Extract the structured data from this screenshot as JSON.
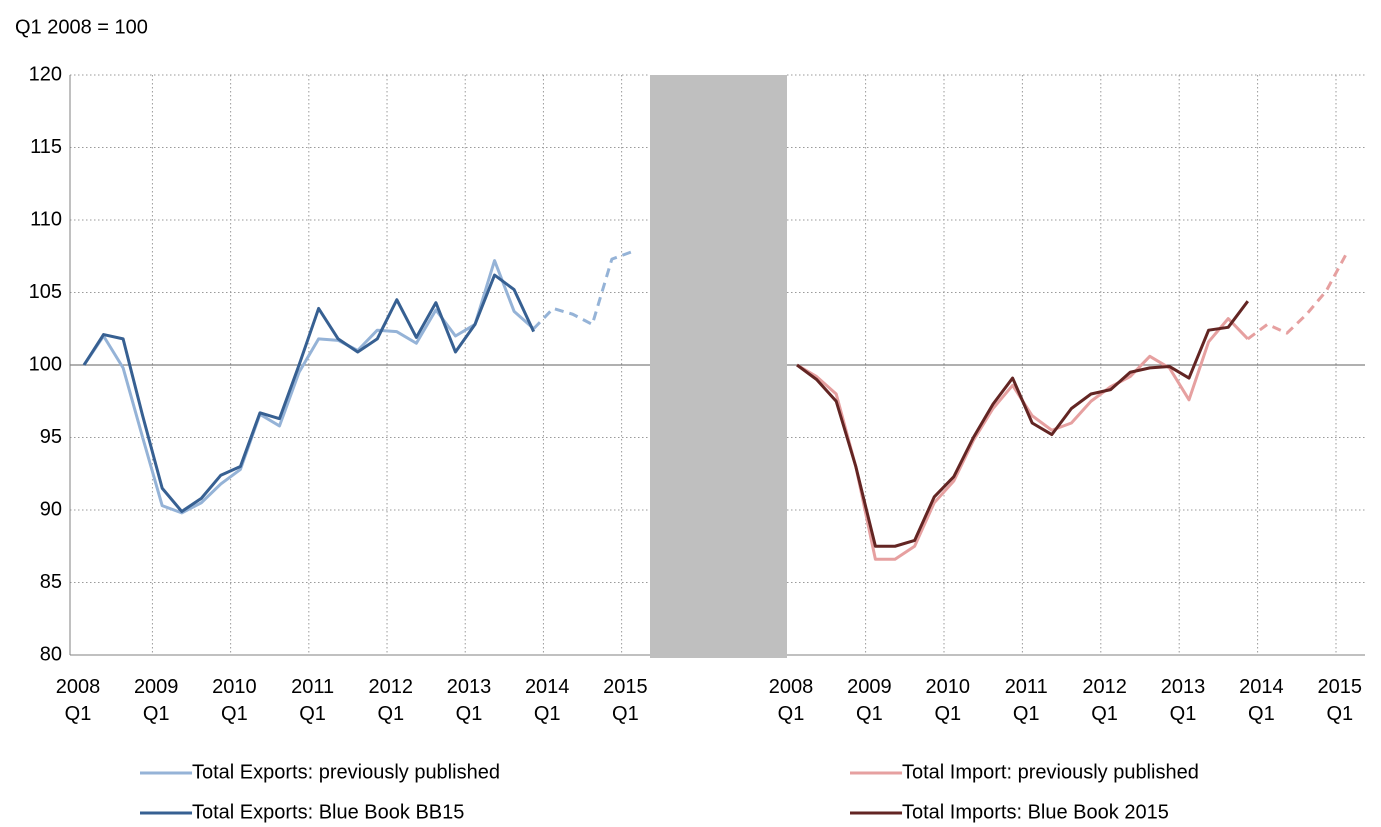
{
  "chart_data": [
    {
      "type": "line",
      "y_label": "Q1 2008  = 100",
      "categories": [
        "2008 Q1",
        null,
        null,
        null,
        "2009 Q1",
        null,
        null,
        null,
        "2010 Q1",
        null,
        null,
        null,
        "2011 Q1",
        null,
        null,
        null,
        "2012 Q1",
        null,
        null,
        null,
        "2013 Q1",
        null,
        null,
        null,
        "2014 Q1",
        null,
        null,
        null,
        "2015 Q1"
      ],
      "series": [
        {
          "name": "Total Exports: previously published",
          "color": "#95b3d7",
          "values": [
            100,
            102,
            99.8,
            95,
            90.3,
            89.8,
            90.5,
            91.8,
            92.8,
            96.6,
            95.8,
            99.5,
            101.8,
            101.7,
            101,
            102.4,
            102.3,
            101.5,
            103.8,
            102,
            102.8,
            107.2,
            103.7,
            102.5,
            103.9,
            103.5,
            102.8,
            107.3,
            107.8
          ]
        },
        {
          "name": "Total Exports: Blue Book  BB15",
          "color": "#376092",
          "values": [
            100,
            102.1,
            101.8,
            96.5,
            91.5,
            89.9,
            90.8,
            92.4,
            93,
            96.7,
            96.3,
            100,
            103.9,
            101.8,
            100.9,
            101.8,
            104.5,
            101.9,
            104.3,
            100.9,
            102.8,
            106.2,
            105.2,
            102.3,
            null,
            null,
            null,
            null,
            null
          ]
        }
      ],
      "dashed_from": "2014 Q1",
      "reference_line": 100,
      "ylim": [
        80,
        120
      ],
      "yticks": [
        80,
        85,
        90,
        95,
        100,
        105,
        110,
        115,
        120
      ],
      "grid": true
    },
    {
      "type": "line",
      "categories": [
        "2008 Q1",
        null,
        null,
        null,
        "2009 Q1",
        null,
        null,
        null,
        "2010 Q1",
        null,
        null,
        null,
        "2011 Q1",
        null,
        null,
        null,
        "2012 Q1",
        null,
        null,
        null,
        "2013 Q1",
        null,
        null,
        null,
        "2014 Q1",
        null,
        null,
        null,
        "2015 Q1"
      ],
      "series": [
        {
          "name": "Total Import: previously published",
          "color": "#e6a0a0",
          "values": [
            100,
            99.2,
            98,
            93,
            86.6,
            86.6,
            87.5,
            90.5,
            92,
            94.8,
            97,
            98.6,
            96.5,
            95.5,
            96,
            97.5,
            98.5,
            99.2,
            100.6,
            99.8,
            97.6,
            101.6,
            103.2,
            101.8,
            102.8,
            102.2,
            103.5,
            105.1,
            107.6
          ]
        },
        {
          "name": "Total Imports: Blue Book 2015",
          "color": "#632523",
          "values": [
            100,
            99,
            97.5,
            93,
            87.5,
            87.5,
            87.9,
            90.9,
            92.3,
            95,
            97.3,
            99.1,
            96,
            95.2,
            97,
            98,
            98.3,
            99.5,
            99.8,
            99.9,
            99.1,
            102.4,
            102.6,
            104.4,
            null,
            null,
            null,
            null,
            null
          ]
        }
      ],
      "dashed_from": "2014 Q1",
      "reference_line": 100,
      "ylim": [
        80,
        120
      ],
      "grid": true
    }
  ]
}
